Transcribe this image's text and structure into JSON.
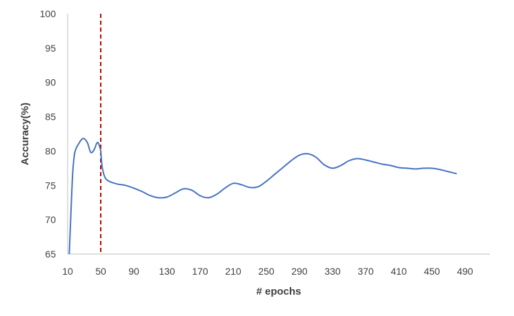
{
  "chart_data": {
    "type": "line",
    "title": "",
    "xlabel": "# epochs",
    "ylabel": "Accuracy(%)",
    "ylim": [
      65,
      100
    ],
    "xlim": [
      10,
      520
    ],
    "grid": false,
    "y_ticks": [
      "65",
      "70",
      "75",
      "80",
      "85",
      "90",
      "95",
      "100"
    ],
    "x_ticks": [
      "10",
      "50",
      "90",
      "130",
      "170",
      "210",
      "250",
      "290",
      "330",
      "370",
      "410",
      "450",
      "490"
    ],
    "series": [
      {
        "color": "#4472c4",
        "x": [
          12,
          14,
          16,
          18,
          20,
          23,
          27,
          30,
          34,
          38,
          42,
          45,
          47,
          49,
          50,
          51,
          52,
          55,
          60,
          70,
          80,
          90,
          100,
          110,
          120,
          130,
          140,
          150,
          160,
          170,
          180,
          190,
          200,
          210,
          220,
          230,
          240,
          250,
          260,
          270,
          280,
          290,
          300,
          310,
          320,
          330,
          340,
          350,
          360,
          370,
          380,
          390,
          400,
          410,
          420,
          430,
          440,
          450,
          460,
          470,
          480
        ],
        "values": [
          65,
          71,
          76.5,
          79.3,
          80.3,
          81,
          81.7,
          81.8,
          81.2,
          79.8,
          80.2,
          81.1,
          81.2,
          80.5,
          80,
          78.5,
          77.5,
          76.2,
          75.6,
          75.2,
          75,
          74.6,
          74.1,
          73.5,
          73.2,
          73.3,
          73.9,
          74.5,
          74.3,
          73.5,
          73.2,
          73.7,
          74.6,
          75.3,
          75.1,
          74.7,
          74.8,
          75.6,
          76.6,
          77.6,
          78.6,
          79.4,
          79.6,
          79.1,
          78,
          77.5,
          77.9,
          78.6,
          78.9,
          78.7,
          78.4,
          78.1,
          77.9,
          77.6,
          77.5,
          77.4,
          77.5,
          77.5,
          77.3,
          77,
          76.7
        ]
      }
    ],
    "reference_line": {
      "x": 50,
      "color": "#c00000",
      "style": "dashed"
    }
  }
}
